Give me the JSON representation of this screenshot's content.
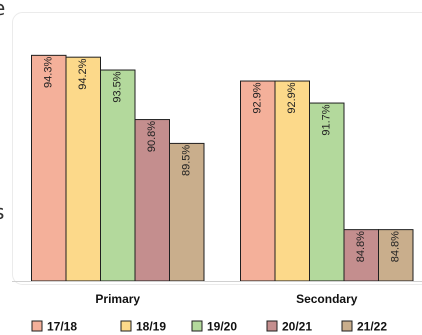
{
  "chart_data": {
    "type": "bar",
    "categories": [
      "Primary",
      "Secondary"
    ],
    "series": [
      {
        "name": "17/18",
        "values": [
          94.3,
          92.9
        ],
        "labels": [
          "94.3%",
          "92.9%"
        ],
        "color": "#f4b09a"
      },
      {
        "name": "18/19",
        "values": [
          94.2,
          92.9
        ],
        "labels": [
          "94.2%",
          "92.9%"
        ],
        "color": "#fcd98a"
      },
      {
        "name": "19/20",
        "values": [
          93.5,
          91.7
        ],
        "labels": [
          "93.5%",
          "91.7%"
        ],
        "color": "#b3d99c"
      },
      {
        "name": "20/21",
        "values": [
          90.8,
          84.8
        ],
        "labels": [
          "90.8%",
          "84.8%"
        ],
        "color": "#c48e8e"
      },
      {
        "name": "21/22",
        "values": [
          89.5,
          84.8
        ],
        "labels": [
          "89.5%",
          "84.8%"
        ],
        "color": "#c9ae8c"
      }
    ],
    "ylim": [
      82,
      95
    ],
    "legend_position": "bottom",
    "grid": false,
    "data_labels_rotated": true
  },
  "edge_glyphs": {
    "top_left": "e",
    "middle_left": "s"
  }
}
